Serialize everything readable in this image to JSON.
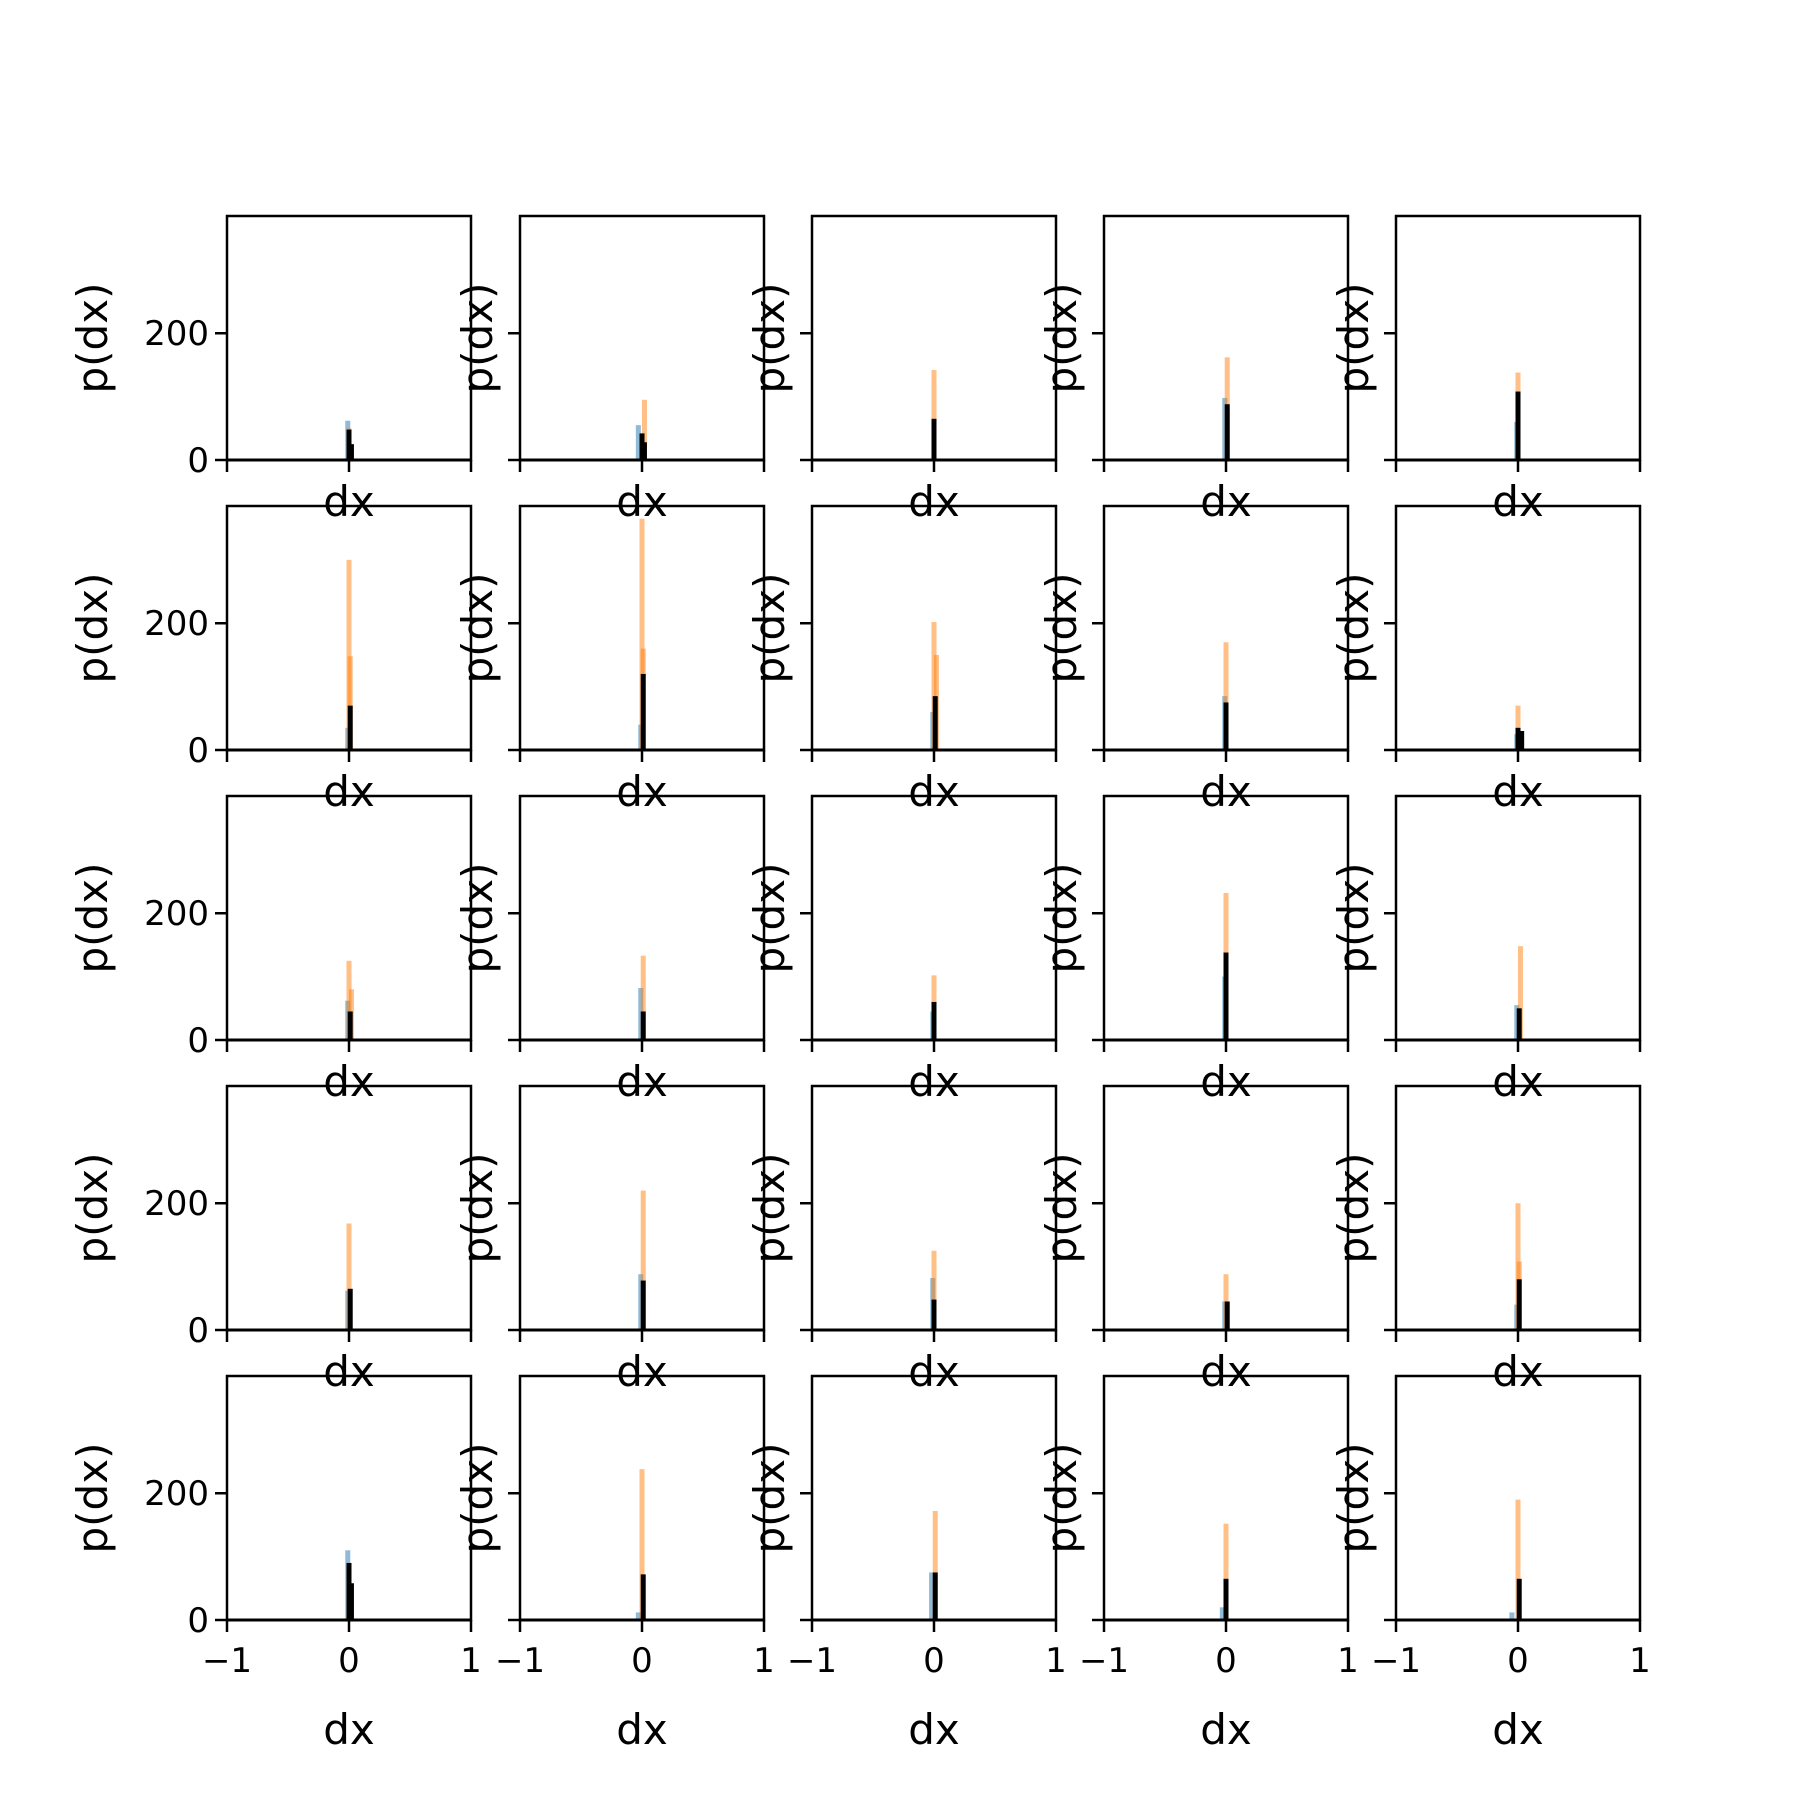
{
  "chart_data": {
    "type": "bar",
    "layout": "5x5 grid of histogram panels",
    "xlim": [
      -1,
      1
    ],
    "ylim": [
      0,
      385
    ],
    "xticks": [
      -1,
      0,
      1
    ],
    "xtick_labels": [
      "−1",
      "0",
      "1"
    ],
    "yticks": [
      0,
      200
    ],
    "ytick_labels": [
      "0",
      "200"
    ],
    "xlabel": "dx",
    "ylabel": "p(dx)",
    "grid": false,
    "colors": {
      "series_blue": "#1f77b4",
      "series_orange": "#ff7f0e",
      "series_black": "#000000"
    },
    "panels": [
      {
        "row": 0,
        "col": 0,
        "blue": [
          {
            "x": -0.01,
            "v": 62
          }
        ],
        "orange": [
          {
            "x": 0.0,
            "v": 50
          }
        ],
        "black": [
          {
            "x": 0.0,
            "v": 48
          },
          {
            "x": 0.02,
            "v": 25
          }
        ]
      },
      {
        "row": 0,
        "col": 1,
        "blue": [
          {
            "x": -0.03,
            "v": 55
          }
        ],
        "orange": [
          {
            "x": 0.02,
            "v": 95
          }
        ],
        "black": [
          {
            "x": 0.0,
            "v": 42
          },
          {
            "x": 0.02,
            "v": 28
          }
        ]
      },
      {
        "row": 0,
        "col": 2,
        "blue": [
          {
            "x": 0.0,
            "v": 30
          }
        ],
        "orange": [
          {
            "x": 0.0,
            "v": 142
          }
        ],
        "black": [
          {
            "x": 0.0,
            "v": 65
          }
        ]
      },
      {
        "row": 0,
        "col": 3,
        "blue": [
          {
            "x": -0.01,
            "v": 98
          }
        ],
        "orange": [
          {
            "x": 0.01,
            "v": 162
          }
        ],
        "black": [
          {
            "x": 0.01,
            "v": 88
          }
        ]
      },
      {
        "row": 0,
        "col": 4,
        "blue": [
          {
            "x": -0.01,
            "v": 60
          }
        ],
        "orange": [
          {
            "x": 0.0,
            "v": 138
          }
        ],
        "black": [
          {
            "x": 0.0,
            "v": 108
          }
        ]
      },
      {
        "row": 1,
        "col": 0,
        "blue": [
          {
            "x": -0.01,
            "v": 35
          }
        ],
        "orange": [
          {
            "x": 0.0,
            "v": 300
          },
          {
            "x": 0.01,
            "v": 148
          }
        ],
        "black": [
          {
            "x": 0.01,
            "v": 70
          }
        ]
      },
      {
        "row": 1,
        "col": 1,
        "blue": [
          {
            "x": -0.01,
            "v": 40
          }
        ],
        "orange": [
          {
            "x": 0.0,
            "v": 365
          },
          {
            "x": 0.01,
            "v": 160
          }
        ],
        "black": [
          {
            "x": 0.01,
            "v": 120
          }
        ]
      },
      {
        "row": 1,
        "col": 2,
        "blue": [
          {
            "x": -0.01,
            "v": 60
          }
        ],
        "orange": [
          {
            "x": 0.0,
            "v": 202
          },
          {
            "x": 0.02,
            "v": 150
          }
        ],
        "black": [
          {
            "x": 0.01,
            "v": 85
          }
        ]
      },
      {
        "row": 1,
        "col": 3,
        "blue": [
          {
            "x": -0.01,
            "v": 85
          }
        ],
        "orange": [
          {
            "x": 0.0,
            "v": 170
          }
        ],
        "black": [
          {
            "x": 0.0,
            "v": 75
          }
        ]
      },
      {
        "row": 1,
        "col": 4,
        "blue": [
          {
            "x": -0.01,
            "v": 25
          }
        ],
        "orange": [
          {
            "x": 0.0,
            "v": 70
          }
        ],
        "black": [
          {
            "x": 0.0,
            "v": 35
          },
          {
            "x": 0.03,
            "v": 30
          }
        ]
      },
      {
        "row": 2,
        "col": 0,
        "blue": [
          {
            "x": -0.01,
            "v": 62
          }
        ],
        "orange": [
          {
            "x": 0.0,
            "v": 125
          },
          {
            "x": 0.02,
            "v": 80
          }
        ],
        "black": [
          {
            "x": 0.01,
            "v": 45
          }
        ]
      },
      {
        "row": 2,
        "col": 1,
        "blue": [
          {
            "x": -0.01,
            "v": 82
          }
        ],
        "orange": [
          {
            "x": 0.01,
            "v": 133
          }
        ],
        "black": [
          {
            "x": 0.01,
            "v": 45
          }
        ]
      },
      {
        "row": 2,
        "col": 2,
        "blue": [
          {
            "x": -0.01,
            "v": 45
          }
        ],
        "orange": [
          {
            "x": 0.0,
            "v": 102
          }
        ],
        "black": [
          {
            "x": 0.0,
            "v": 60
          }
        ]
      },
      {
        "row": 2,
        "col": 3,
        "blue": [
          {
            "x": -0.01,
            "v": 100
          }
        ],
        "orange": [
          {
            "x": 0.0,
            "v": 232
          }
        ],
        "black": [
          {
            "x": 0.0,
            "v": 138
          }
        ]
      },
      {
        "row": 2,
        "col": 4,
        "blue": [
          {
            "x": -0.01,
            "v": 55
          }
        ],
        "orange": [
          {
            "x": 0.02,
            "v": 148
          }
        ],
        "black": [
          {
            "x": 0.01,
            "v": 50
          }
        ]
      },
      {
        "row": 3,
        "col": 0,
        "blue": [
          {
            "x": -0.01,
            "v": 62
          }
        ],
        "orange": [
          {
            "x": 0.0,
            "v": 168
          }
        ],
        "black": [
          {
            "x": 0.01,
            "v": 65
          }
        ]
      },
      {
        "row": 3,
        "col": 1,
        "blue": [
          {
            "x": -0.01,
            "v": 88
          }
        ],
        "orange": [
          {
            "x": 0.01,
            "v": 220
          }
        ],
        "black": [
          {
            "x": 0.01,
            "v": 78
          }
        ]
      },
      {
        "row": 3,
        "col": 2,
        "blue": [
          {
            "x": -0.01,
            "v": 82
          }
        ],
        "orange": [
          {
            "x": 0.0,
            "v": 125
          }
        ],
        "black": [
          {
            "x": 0.0,
            "v": 48
          }
        ]
      },
      {
        "row": 3,
        "col": 3,
        "blue": [
          {
            "x": -0.01,
            "v": 45
          }
        ],
        "orange": [
          {
            "x": 0.0,
            "v": 88
          }
        ],
        "black": [
          {
            "x": 0.01,
            "v": 45
          }
        ]
      },
      {
        "row": 3,
        "col": 4,
        "blue": [
          {
            "x": -0.01,
            "v": 40
          }
        ],
        "orange": [
          {
            "x": 0.0,
            "v": 200
          },
          {
            "x": 0.01,
            "v": 108
          }
        ],
        "black": [
          {
            "x": 0.01,
            "v": 80
          }
        ]
      },
      {
        "row": 4,
        "col": 0,
        "blue": [
          {
            "x": -0.01,
            "v": 110
          }
        ],
        "orange": [
          {
            "x": 0.0,
            "v": 60
          }
        ],
        "black": [
          {
            "x": 0.0,
            "v": 90
          },
          {
            "x": 0.02,
            "v": 58
          }
        ]
      },
      {
        "row": 4,
        "col": 1,
        "blue": [
          {
            "x": -0.03,
            "v": 12
          }
        ],
        "orange": [
          {
            "x": 0.0,
            "v": 238
          }
        ],
        "black": [
          {
            "x": 0.01,
            "v": 72
          }
        ]
      },
      {
        "row": 4,
        "col": 2,
        "blue": [
          {
            "x": -0.02,
            "v": 75
          }
        ],
        "orange": [
          {
            "x": 0.01,
            "v": 172
          }
        ],
        "black": [
          {
            "x": 0.01,
            "v": 75
          }
        ]
      },
      {
        "row": 4,
        "col": 3,
        "blue": [
          {
            "x": -0.03,
            "v": 20
          }
        ],
        "orange": [
          {
            "x": 0.0,
            "v": 152
          }
        ],
        "black": [
          {
            "x": 0.0,
            "v": 65
          }
        ]
      },
      {
        "row": 4,
        "col": 4,
        "blue": [
          {
            "x": -0.05,
            "v": 12
          }
        ],
        "orange": [
          {
            "x": 0.0,
            "v": 190
          }
        ],
        "black": [
          {
            "x": 0.01,
            "v": 65
          }
        ]
      }
    ]
  }
}
